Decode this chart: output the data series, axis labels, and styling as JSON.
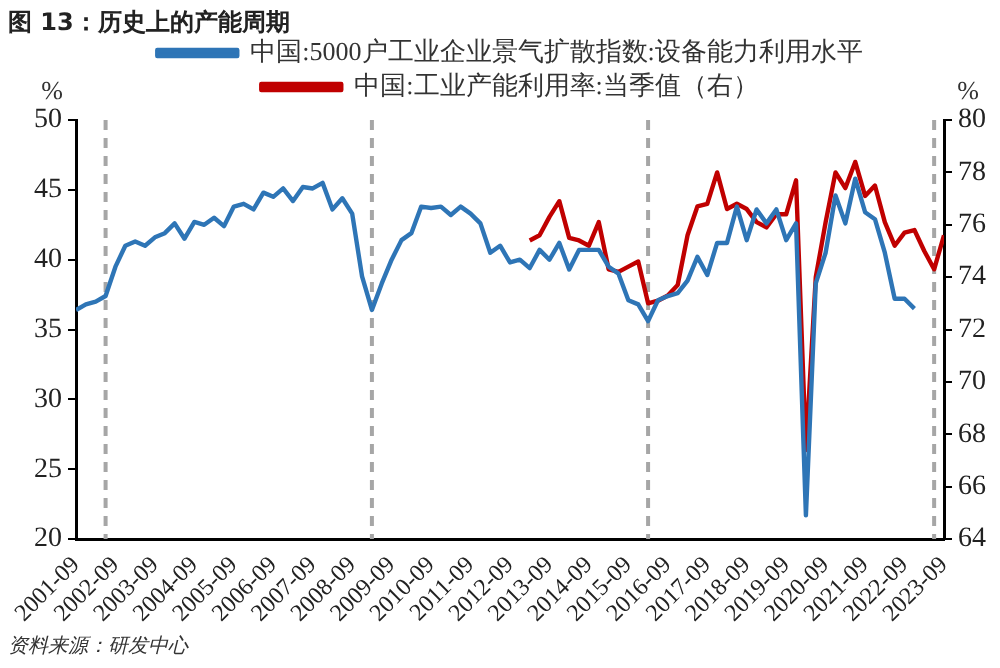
{
  "chart_data": {
    "type": "line",
    "title": "图 13：历史上的产能周期",
    "ylabel": "%",
    "y2label": "%",
    "annotations": [
      "资料来源：研发中心"
    ],
    "x": [
      "2001-09",
      "2001-12",
      "2002-03",
      "2002-06",
      "2002-09",
      "2002-12",
      "2003-03",
      "2003-06",
      "2003-09",
      "2003-12",
      "2004-03",
      "2004-06",
      "2004-09",
      "2004-12",
      "2005-03",
      "2005-06",
      "2005-09",
      "2005-12",
      "2006-03",
      "2006-06",
      "2006-09",
      "2006-12",
      "2007-03",
      "2007-06",
      "2007-09",
      "2007-12",
      "2008-03",
      "2008-06",
      "2008-09",
      "2008-12",
      "2009-03",
      "2009-06",
      "2009-09",
      "2009-12",
      "2010-03",
      "2010-06",
      "2010-09",
      "2010-12",
      "2011-03",
      "2011-06",
      "2011-09",
      "2011-12",
      "2012-03",
      "2012-06",
      "2012-09",
      "2012-12",
      "2013-03",
      "2013-06",
      "2013-09",
      "2013-12",
      "2014-03",
      "2014-06",
      "2014-09",
      "2014-12",
      "2015-03",
      "2015-06",
      "2015-09",
      "2015-12",
      "2016-03",
      "2016-06",
      "2016-09",
      "2016-12",
      "2017-03",
      "2017-06",
      "2017-09",
      "2017-12",
      "2018-03",
      "2018-06",
      "2018-09",
      "2018-12",
      "2019-03",
      "2019-06",
      "2019-09",
      "2019-12",
      "2020-03",
      "2020-06",
      "2020-09",
      "2020-12",
      "2021-03",
      "2021-06",
      "2021-09",
      "2021-12",
      "2022-03",
      "2022-06",
      "2022-09",
      "2022-12",
      "2023-03",
      "2023-06",
      "2023-09"
    ],
    "series": [
      {
        "name": "中国:5000户工业企业景气扩散指数:设备能力利用水平",
        "color": "#2e75b6",
        "values": [
          36.4,
          36.8,
          37.0,
          37.4,
          39.5,
          41.0,
          41.3,
          41.0,
          41.6,
          41.9,
          42.6,
          41.5,
          42.7,
          42.5,
          43.0,
          42.4,
          43.8,
          44.0,
          43.6,
          44.8,
          44.5,
          45.1,
          44.2,
          45.2,
          45.1,
          45.5,
          43.6,
          44.4,
          43.3,
          38.8,
          36.4,
          38.3,
          40.0,
          41.4,
          41.9,
          43.8,
          43.7,
          43.8,
          43.2,
          43.8,
          43.3,
          42.6,
          40.5,
          41.0,
          39.8,
          40.0,
          39.4,
          40.7,
          40.0,
          41.2,
          39.3,
          40.7,
          40.7,
          40.7,
          39.5,
          39.0,
          37.1,
          36.8,
          35.6,
          37.1,
          37.4,
          37.6,
          38.5,
          40.2,
          38.9,
          41.2,
          41.2,
          43.8,
          41.4,
          43.6,
          42.6,
          43.6,
          41.4,
          42.6,
          21.7,
          38.3,
          40.5,
          44.6,
          42.6,
          45.8,
          43.4,
          42.9,
          40.5,
          37.2,
          37.2,
          36.5,
          null,
          null,
          null
        ]
      },
      {
        "name": "中国:工业产能利用率:当季值（右）",
        "color": "#c00000",
        "axis": "y2",
        "values": [
          null,
          null,
          null,
          null,
          null,
          null,
          null,
          null,
          null,
          null,
          null,
          null,
          null,
          null,
          null,
          null,
          null,
          null,
          null,
          null,
          null,
          null,
          null,
          null,
          null,
          null,
          null,
          null,
          null,
          null,
          null,
          null,
          null,
          null,
          null,
          null,
          null,
          null,
          null,
          null,
          null,
          null,
          null,
          null,
          null,
          null,
          75.4,
          75.6,
          76.3,
          76.9,
          75.5,
          75.4,
          75.2,
          76.1,
          74.3,
          74.2,
          74.4,
          74.6,
          73.0,
          73.1,
          73.3,
          73.7,
          75.6,
          76.7,
          76.8,
          78.0,
          76.6,
          76.8,
          76.6,
          76.1,
          75.9,
          76.4,
          76.4,
          77.7,
          67.4,
          74.0,
          76.1,
          78.0,
          77.4,
          78.4,
          77.1,
          77.5,
          76.1,
          75.2,
          75.7,
          75.8,
          75.0,
          74.3,
          75.6
        ]
      }
    ],
    "xlim": [
      "2001-09",
      "2023-09"
    ],
    "xticks": [
      "2001-09",
      "2002-09",
      "2003-09",
      "2004-09",
      "2005-09",
      "2006-09",
      "2007-09",
      "2008-09",
      "2009-09",
      "2010-09",
      "2011-09",
      "2012-09",
      "2013-09",
      "2014-09",
      "2015-09",
      "2016-09",
      "2017-09",
      "2018-09",
      "2019-09",
      "2020-09",
      "2021-09",
      "2022-09",
      "2023-09"
    ],
    "ylim": [
      20,
      50
    ],
    "yticks": [
      20,
      25,
      30,
      35,
      40,
      45,
      50
    ],
    "y2lim": [
      64,
      80
    ],
    "y2ticks": [
      64,
      66,
      68,
      70,
      72,
      74,
      76,
      78,
      80
    ],
    "ref_lines": [
      {
        "axis": "x",
        "value": "2002-06",
        "color": "#a6a6a6",
        "line_style": "dashed"
      },
      {
        "axis": "x",
        "value": "2009-03",
        "color": "#a6a6a6",
        "line_style": "dashed"
      },
      {
        "axis": "x",
        "value": "2016-03",
        "color": "#a6a6a6",
        "line_style": "dashed"
      },
      {
        "axis": "x",
        "value": "2023-06",
        "color": "#a6a6a6",
        "line_style": "dashed"
      }
    ],
    "grid": false,
    "legend": "top",
    "marker": "none",
    "line_style": "solid"
  }
}
